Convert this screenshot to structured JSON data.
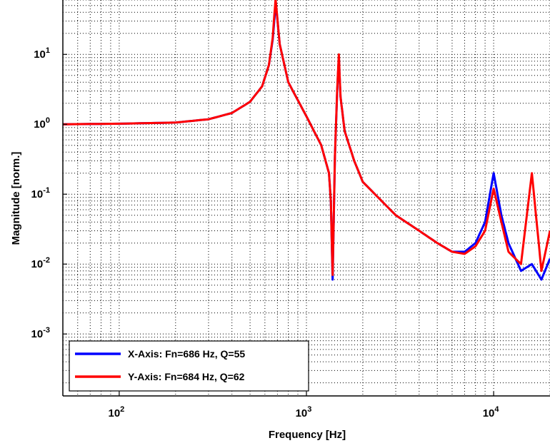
{
  "chart_data": {
    "type": "line",
    "xlabel": "Frequency [Hz]",
    "ylabel": "Magnitude [norm.]",
    "x_scale": "log",
    "y_scale": "log",
    "xlim": [
      50,
      20000
    ],
    "ylim": [
      0.00013,
      60
    ],
    "grid": true,
    "x_ticks": [
      {
        "base": "10",
        "exp": "2",
        "value": 100
      },
      {
        "base": "10",
        "exp": "3",
        "value": 1000
      },
      {
        "base": "10",
        "exp": "4",
        "value": 10000
      }
    ],
    "y_ticks": [
      {
        "base": "10",
        "exp": "1",
        "value": 10
      },
      {
        "base": "10",
        "exp": "0",
        "value": 1
      },
      {
        "base": "10",
        "exp": "-1",
        "value": 0.1
      },
      {
        "base": "10",
        "exp": "-2",
        "value": 0.01
      },
      {
        "base": "10",
        "exp": "-3",
        "value": 0.001
      }
    ],
    "legend_position": "bottom-left",
    "series": [
      {
        "name": "X-Axis: Fn=686 Hz, Q=55",
        "color": "#0000ff",
        "x": [
          50,
          100,
          200,
          300,
          400,
          500,
          580,
          630,
          660,
          686,
          720,
          800,
          1000,
          1200,
          1320,
          1350,
          1380,
          1420,
          1460,
          1490,
          1520,
          1600,
          1800,
          2000,
          3000,
          4000,
          5000,
          6000,
          7000,
          8000,
          9000,
          10000,
          11000,
          12000,
          14000,
          16000,
          18000,
          20000
        ],
        "y": [
          1.0,
          1.02,
          1.06,
          1.18,
          1.45,
          2.1,
          3.5,
          7.0,
          16.0,
          55.0,
          14.0,
          4.0,
          1.3,
          0.5,
          0.2,
          0.08,
          0.006,
          0.35,
          3.0,
          9.0,
          2.5,
          0.8,
          0.3,
          0.15,
          0.05,
          0.03,
          0.02,
          0.015,
          0.015,
          0.02,
          0.04,
          0.2,
          0.05,
          0.02,
          0.008,
          0.01,
          0.006,
          0.012
        ]
      },
      {
        "name": "Y-Axis: Fn=684 Hz, Q=62",
        "color": "#ff0000",
        "x": [
          50,
          100,
          200,
          300,
          400,
          500,
          580,
          630,
          660,
          684,
          720,
          800,
          1000,
          1200,
          1320,
          1350,
          1380,
          1420,
          1460,
          1490,
          1520,
          1600,
          1800,
          2000,
          3000,
          4000,
          5000,
          6000,
          7000,
          8000,
          9000,
          10000,
          11000,
          12000,
          14000,
          16000,
          18000,
          20000
        ],
        "y": [
          1.0,
          1.02,
          1.06,
          1.18,
          1.45,
          2.1,
          3.5,
          7.0,
          17.0,
          62.0,
          14.0,
          4.0,
          1.3,
          0.5,
          0.2,
          0.08,
          0.007,
          0.35,
          3.2,
          10.0,
          2.5,
          0.8,
          0.3,
          0.15,
          0.05,
          0.03,
          0.02,
          0.015,
          0.014,
          0.018,
          0.03,
          0.12,
          0.04,
          0.015,
          0.01,
          0.2,
          0.008,
          0.03
        ]
      }
    ]
  }
}
